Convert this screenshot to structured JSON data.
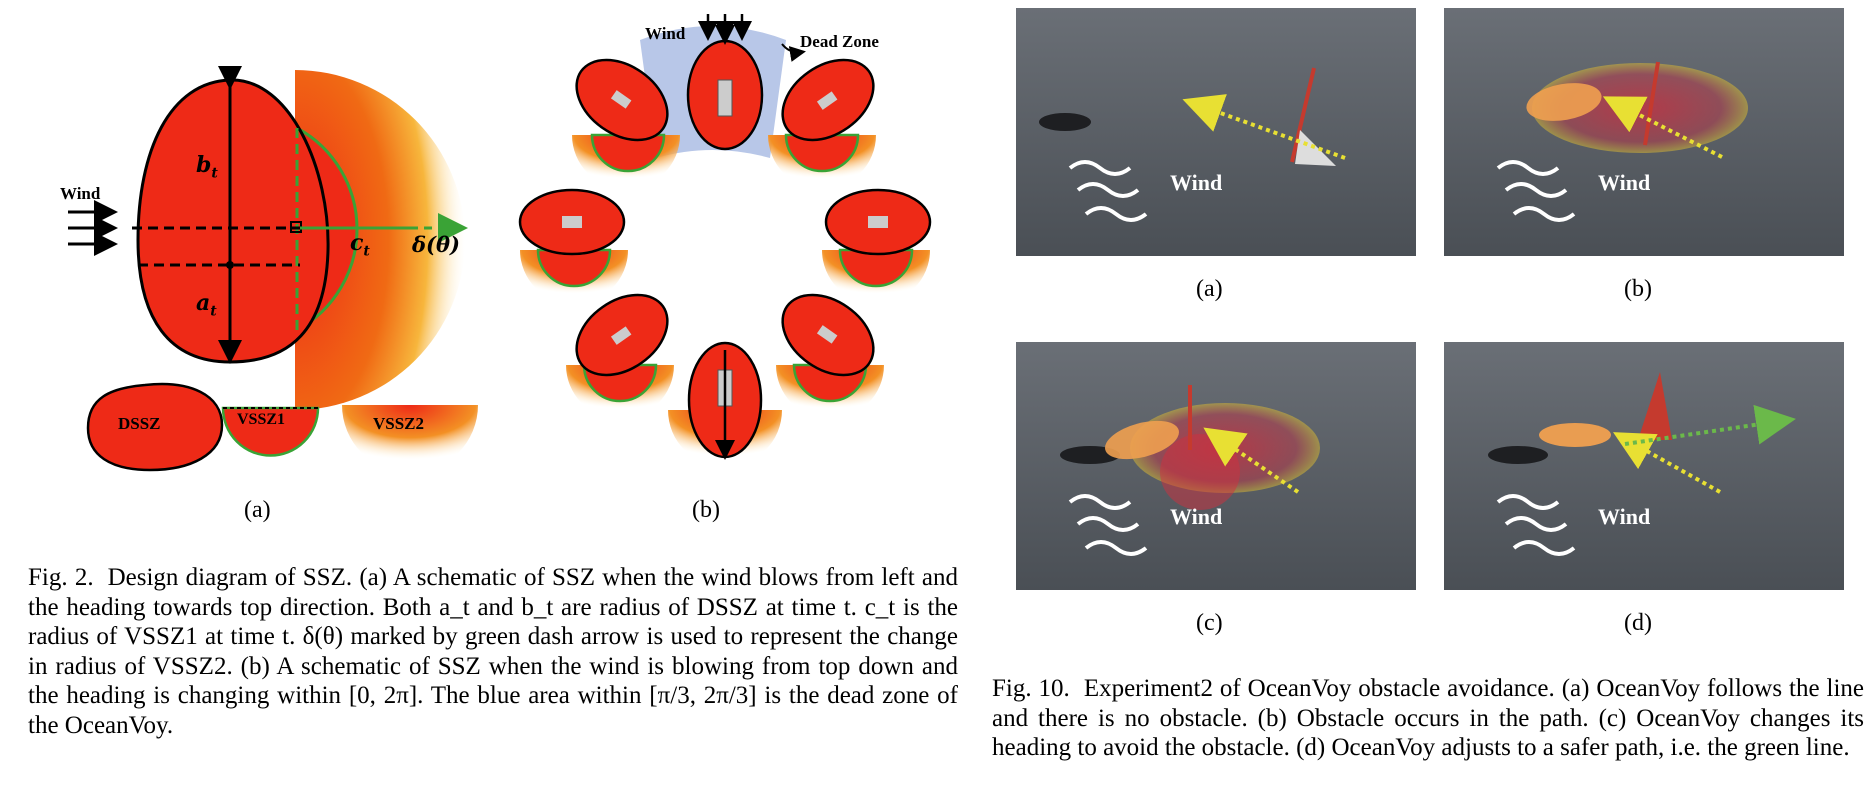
{
  "fig2": {
    "wind_label": "Wind",
    "b_label": "b",
    "b_sub": "t",
    "a_label": "a",
    "a_sub": "t",
    "c_label": "c",
    "c_sub": "t",
    "delta_label": "δ(θ)",
    "legend": [
      "DSSZ",
      "VSSZ1",
      "VSSZ2"
    ],
    "dead_zone_label": "Dead Zone",
    "sublabel_a": "(a)",
    "sublabel_b": "(b)",
    "caption_no": "Fig. 2.",
    "caption_text": "Design diagram of SSZ. (a) A schematic of SSZ when the wind blows from left and the heading towards top direction. Both a_t and b_t are radius of DSSZ at time t. c_t is the radius of VSSZ1 at time t. δ(θ) marked by green dash arrow is used to represent the change in radius of VSSZ2. (b) A schematic of SSZ when the wind is blowing from top down and the heading is changing within [0, 2π]. The blue area within [π/3, 2π/3] is the dead zone of the OceanVoy."
  },
  "fig10": {
    "panels": [
      {
        "label": "(a)",
        "wind": "Wind"
      },
      {
        "label": "(b)",
        "wind": "Wind"
      },
      {
        "label": "(c)",
        "wind": "Wind"
      },
      {
        "label": "(d)",
        "wind": "Wind"
      }
    ],
    "caption_no": "Fig. 10.",
    "caption_text": "Experiment2 of OceanVoy obstacle avoidance. (a) OceanVoy follows the line and there is no obstacle. (b) Obstacle occurs in the path. (c) OceanVoy changes its heading to avoid the obstacle. (d) OceanVoy adjusts to a safer path, i.e. the green line."
  },
  "colors": {
    "red": "#ee2a17",
    "dead_zone": "#b8c7e8",
    "green": "#3aa336",
    "water": "#5d6268"
  }
}
